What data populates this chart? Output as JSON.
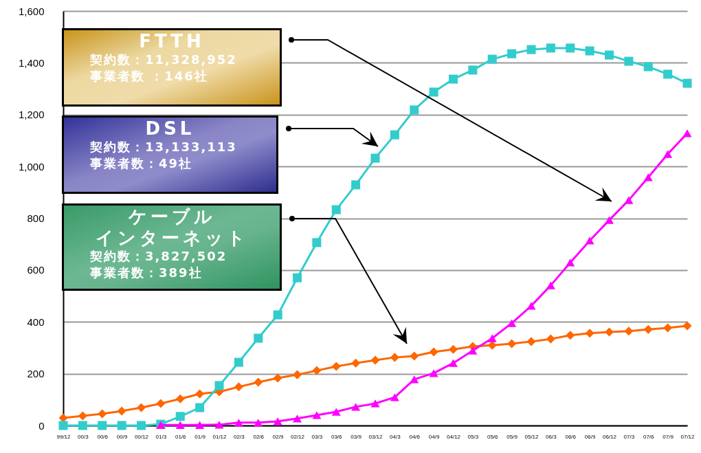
{
  "chart_data": {
    "type": "line",
    "categories": [
      "99/12",
      "00/3",
      "00/6",
      "00/9",
      "00/12",
      "01/3",
      "01/6",
      "01/9",
      "01/12",
      "02/3",
      "02/6",
      "02/9",
      "02/12",
      "03/3",
      "03/6",
      "03/9",
      "03/12",
      "04/3",
      "04/6",
      "04/9",
      "04/12",
      "05/3",
      "05/6",
      "05/9",
      "05/12",
      "06/3",
      "06/6",
      "06/9",
      "06/12",
      "07/3",
      "07/6",
      "07/9",
      "07/12"
    ],
    "series": [
      {
        "color": "#ff00ff",
        "marker": "triangle",
        "values": [
          null,
          null,
          null,
          null,
          null,
          2,
          2,
          2,
          3,
          11,
          11,
          16,
          27,
          40,
          53,
          72,
          85,
          109,
          178,
          202,
          241,
          289,
          337,
          395,
          462,
          541,
          629,
          714,
          793,
          870,
          958,
          1048,
          1128
        ]
      },
      {
        "color": "#33cccc",
        "marker": "square",
        "values": [
          0,
          0,
          0,
          0,
          0,
          5,
          35,
          69,
          154,
          244,
          337,
          427,
          570,
          706,
          833,
          929,
          1032,
          1122,
          1218,
          1287,
          1337,
          1372,
          1414,
          1435,
          1451,
          1457,
          1457,
          1446,
          1430,
          1406,
          1385,
          1356,
          1321
        ]
      },
      {
        "color": "#ff6600",
        "marker": "diamond",
        "values": [
          29,
          37,
          45,
          56,
          69,
          85,
          103,
          122,
          130,
          149,
          167,
          183,
          196,
          212,
          228,
          241,
          252,
          263,
          268,
          284,
          294,
          305,
          310,
          316,
          324,
          334,
          348,
          356,
          361,
          364,
          371,
          377,
          385
        ]
      }
    ],
    "annotations": [
      "FTTH",
      "契約数：11,328,952",
      "事業者数 ：146社",
      "DSL",
      "契約数：13,133,113",
      "事業者数：49社",
      "ケーブル",
      "インターネット",
      "契約数：3,827,502",
      "事業者数：389社"
    ],
    "ylim": [
      0,
      1600
    ],
    "yticks": [
      0,
      200,
      400,
      600,
      800,
      {
        "value": 1000,
        "label": "1,000"
      },
      {
        "value": 1200,
        "label": "1,200"
      },
      {
        "value": 1400,
        "label": "1,400"
      },
      {
        "value": 1600,
        "label": "1,600"
      }
    ],
    "grid": "y"
  }
}
